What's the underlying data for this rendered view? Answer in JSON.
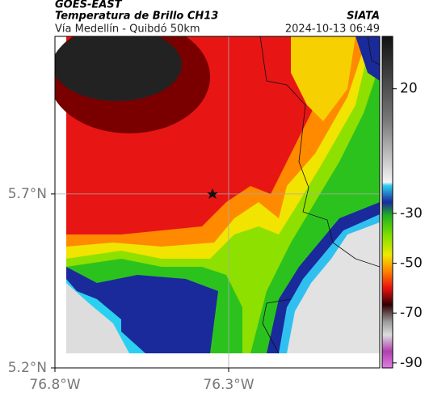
{
  "header": {
    "title": "GOES-EAST",
    "subtitle": "Temperatura de Brillo CH13",
    "left_caption": "Vía Medellín - Quibdó 50km",
    "source": "SIATA",
    "timestamp": "2024-10-13 06:49"
  },
  "map": {
    "xlim": [
      -76.8,
      -75.865
    ],
    "ylim": [
      5.2,
      6.153
    ],
    "xticks": [
      {
        "value": -76.8,
        "label": "76.8°W"
      },
      {
        "value": -76.3,
        "label": "76.3°W"
      }
    ],
    "yticks": [
      {
        "value": 5.2,
        "label": "5.2°N"
      },
      {
        "value": 5.7,
        "label": "5.7°N"
      }
    ],
    "grid": true,
    "colorbar": {
      "clim": [
        -92,
        41
      ],
      "ticks": [
        20,
        -30,
        -50,
        -70,
        -90
      ]
    }
  }
}
